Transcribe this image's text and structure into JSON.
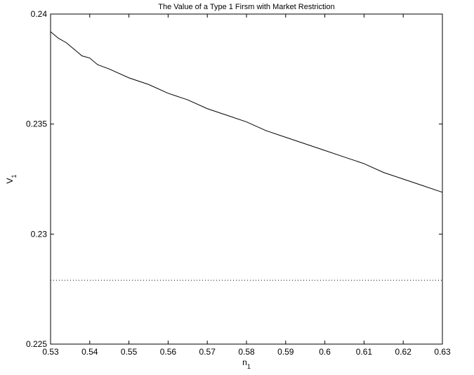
{
  "chart_data": {
    "type": "line",
    "title": "The Value of a Type 1 Firsm with Market Restriction",
    "xlabel": "n",
    "xlabel_sub": "1",
    "ylabel": "V",
    "ylabel_sub": "1",
    "xlim": [
      0.53,
      0.63
    ],
    "ylim": [
      0.225,
      0.24
    ],
    "xticks": [
      0.53,
      0.54,
      0.55,
      0.56,
      0.57,
      0.58,
      0.59,
      0.6,
      0.61,
      0.62,
      0.63
    ],
    "xtick_labels": [
      "0.53",
      "0.54",
      "0.55",
      "0.56",
      "0.57",
      "0.58",
      "0.59",
      "0.6",
      "0.61",
      "0.62",
      "0.63"
    ],
    "yticks": [
      0.225,
      0.23,
      0.235,
      0.24
    ],
    "ytick_labels": [
      "0.225",
      "0.23",
      "0.235",
      "0.24"
    ],
    "grid": false,
    "line_color": "#000000",
    "series": [
      {
        "style": "solid",
        "x": [
          0.53,
          0.532,
          0.534,
          0.536,
          0.538,
          0.54,
          0.542,
          0.545,
          0.55,
          0.555,
          0.56,
          0.565,
          0.57,
          0.575,
          0.58,
          0.585,
          0.59,
          0.595,
          0.6,
          0.605,
          0.61,
          0.615,
          0.62,
          0.625,
          0.63
        ],
        "y": [
          0.2392,
          0.2389,
          0.2387,
          0.2384,
          0.2381,
          0.238,
          0.2377,
          0.2375,
          0.2371,
          0.2368,
          0.2364,
          0.2361,
          0.2357,
          0.2354,
          0.2351,
          0.2347,
          0.2344,
          0.2341,
          0.2338,
          0.2335,
          0.2332,
          0.2328,
          0.2325,
          0.2322,
          0.2319
        ]
      },
      {
        "style": "dotted",
        "x": [
          0.53,
          0.63
        ],
        "y": [
          0.2279,
          0.2279
        ]
      }
    ]
  }
}
